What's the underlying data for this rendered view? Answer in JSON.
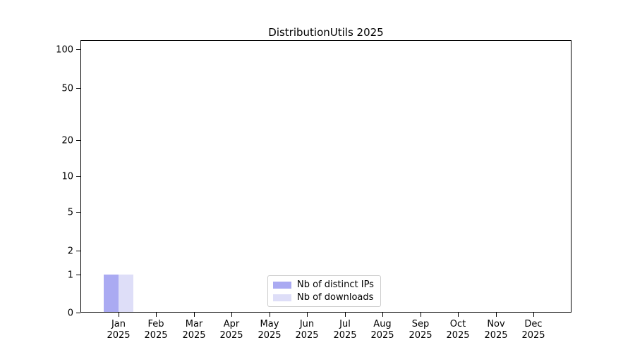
{
  "chart_data": {
    "type": "bar",
    "title": "DistributionUtils 2025",
    "x_axis": {
      "months": [
        "Jan",
        "Feb",
        "Mar",
        "Apr",
        "May",
        "Jun",
        "Jul",
        "Aug",
        "Sep",
        "Oct",
        "Nov",
        "Dec"
      ],
      "year_label": "2025"
    },
    "y_axis": {
      "scale": "symlog",
      "range": [
        0,
        100
      ],
      "major_ticks": [
        0,
        1,
        2,
        5,
        10,
        20,
        50,
        100
      ],
      "minor_ticks": [
        3,
        4,
        6,
        7,
        8,
        9,
        30,
        40,
        60,
        70,
        80,
        90
      ]
    },
    "series": [
      {
        "name": "Nb of distinct IPs",
        "color": "#aaaaf2",
        "values": [
          1,
          0,
          0,
          0,
          0,
          0,
          0,
          0,
          0,
          0,
          0,
          0
        ]
      },
      {
        "name": "Nb of downloads",
        "color": "#dedef8",
        "values": [
          1,
          0,
          0,
          0,
          0,
          0,
          0,
          0,
          0,
          0,
          0,
          0
        ]
      }
    ],
    "legend_position": "lower center",
    "grid": true,
    "colors": {
      "grid_major": "#c8c8c8",
      "grid_minor": "#ededed",
      "axis": "#000000"
    }
  }
}
